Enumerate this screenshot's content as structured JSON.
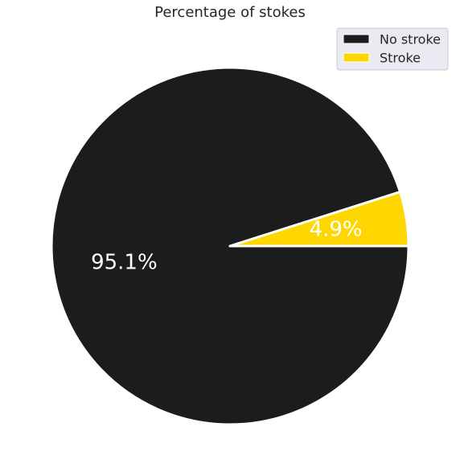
{
  "chart_data": {
    "type": "pie",
    "title": "Percentage of stokes",
    "categories": [
      "No stroke",
      "Stroke"
    ],
    "values": [
      95.1,
      4.9
    ],
    "labels": [
      "95.1%",
      "4.9%"
    ],
    "colors": [
      "#1c1c1c",
      "#ffd700"
    ],
    "start_angle_deg": 0,
    "direction": "clockwise",
    "wedge_edge_color": "#ffffff",
    "legend": {
      "position": "top-right",
      "entries": [
        "No stroke",
        "Stroke"
      ],
      "background": "#eaeaf2"
    }
  }
}
